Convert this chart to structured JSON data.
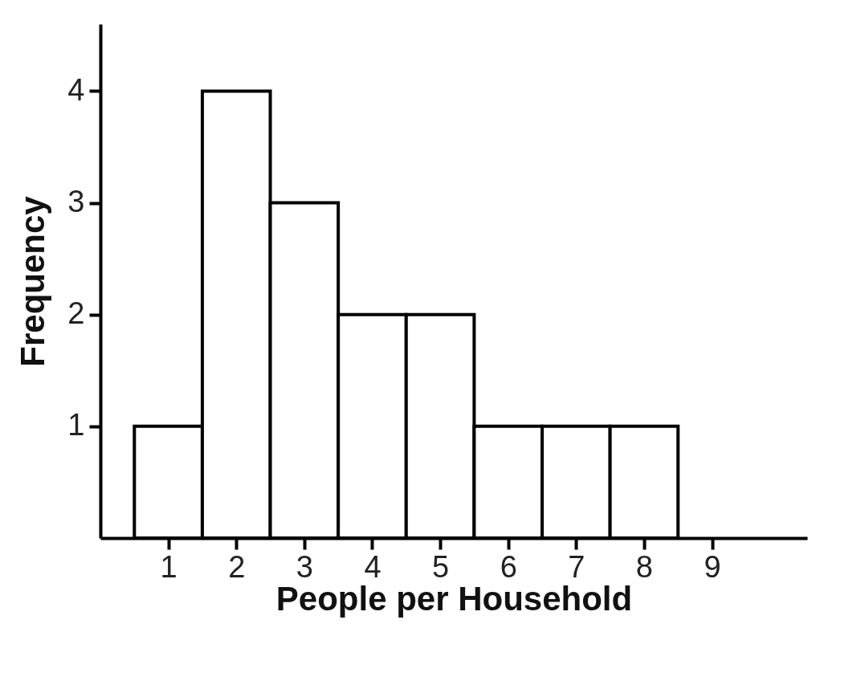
{
  "chart_data": {
    "type": "histogram",
    "xlabel": "People per Household",
    "ylabel": "Frequency",
    "bins": [
      0.5,
      1.5,
      2.5,
      3.5,
      4.5,
      5.5,
      6.5,
      7.5,
      8.5
    ],
    "values": [
      1,
      4,
      3,
      2,
      2,
      1,
      1,
      1
    ],
    "color": "#ffffff",
    "xlim": [
      0,
      10.4
    ],
    "xticks": [
      1,
      2,
      3,
      4,
      5,
      6,
      7,
      8,
      9
    ],
    "ylim": [
      0,
      4.6
    ],
    "yticks": [
      1,
      2,
      3,
      4
    ],
    "grid": false
  }
}
